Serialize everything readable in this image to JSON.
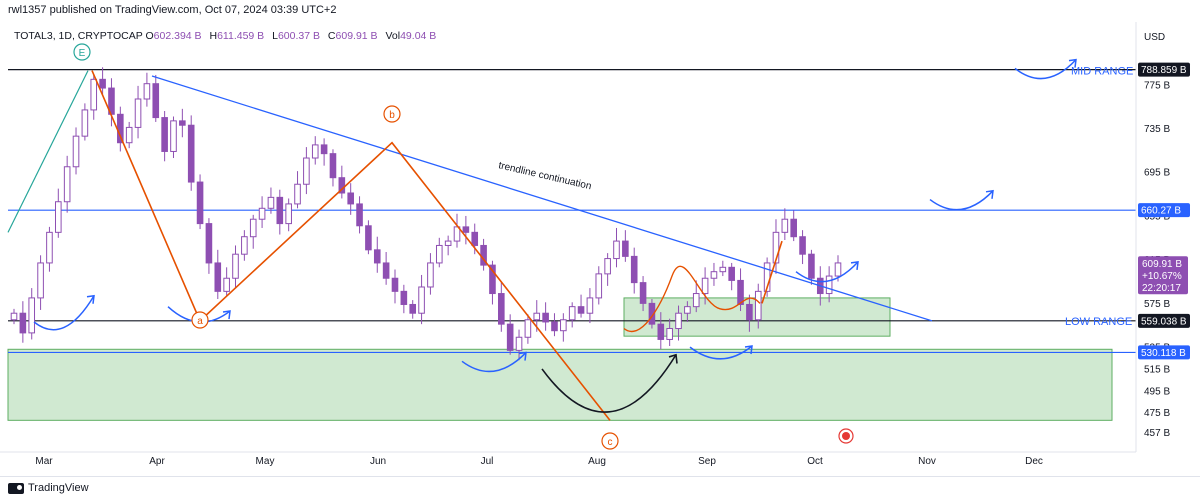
{
  "header": {
    "published": "rwl1357 published on TradingView.com, Oct 07, 2024 03:39 UTC+2"
  },
  "ohlc": {
    "symbol": "TOTAL3, 1D, CRYPTOCAP",
    "open_label": "O",
    "open": "602.394 B",
    "high_label": "H",
    "high": "611.459 B",
    "low_label": "L",
    "low": "600.37 B",
    "close_label": "C",
    "close": "609.91 B",
    "vol_label": "Vol",
    "vol": "49.04 B"
  },
  "footer": {
    "brand": "TradingView"
  },
  "colors": {
    "candle": "#8e4fb2",
    "blue": "#2962ff",
    "orange": "#e65100",
    "green_zone": "#c8e6c9",
    "green_border": "#43a047"
  },
  "chart_data": {
    "type": "line",
    "currency": "USD",
    "x_ticks": [
      "Mar",
      "Apr",
      "May",
      "Jun",
      "Jul",
      "Aug",
      "Sep",
      "Oct",
      "Nov",
      "Dec"
    ],
    "y_ticks": [
      "775 B",
      "735 B",
      "695 B",
      "655 B",
      "615 B",
      "575 B",
      "535 B",
      "515 B",
      "495 B",
      "475 B",
      "457 B"
    ],
    "ylim": [
      450,
      805
    ],
    "series": [
      {
        "values": [
          566,
          548,
          580,
          612,
          640,
          668,
          700,
          728,
          752,
          780,
          772,
          748,
          722,
          736,
          762,
          776,
          745,
          714,
          742,
          738,
          686,
          648,
          612,
          586,
          598,
          620,
          636,
          652,
          662,
          672,
          648,
          666,
          684,
          708,
          720,
          712,
          690,
          676,
          666,
          646,
          624,
          612,
          598,
          586,
          574,
          566,
          590,
          612,
          628,
          632,
          645,
          640,
          628,
          610,
          584,
          556,
          532,
          544,
          560,
          566,
          558,
          550,
          560,
          572,
          566,
          580,
          602,
          616,
          632,
          618,
          594,
          575,
          556,
          542,
          552,
          566,
          572,
          584,
          598,
          604,
          608,
          596,
          574,
          560,
          586,
          612,
          640,
          652,
          636,
          620,
          598,
          584,
          600,
          612
        ]
      }
    ],
    "horizontal_levels": [
      {
        "value": 788.859,
        "label": "788.859 B"
      },
      {
        "value": 660.27,
        "label": "660.27 B"
      },
      {
        "value": 559.038,
        "label": "559.038 B"
      },
      {
        "value": 530.118,
        "label": "530.118 B"
      }
    ],
    "current_price": {
      "value": 609.91,
      "label": "609.91 B",
      "change": "+10.67%",
      "countdown": "22:20:17"
    },
    "annotations": {
      "mid_range": "MID RANGE",
      "low_range": "LOW RANGE",
      "trendline": "trendline continuation",
      "wave_e": "E",
      "wave_a": "a",
      "wave_b": "b",
      "wave_c": "c"
    },
    "zones": [
      {
        "from": 468,
        "to": 533
      },
      {
        "from": 545,
        "to": 580
      }
    ]
  }
}
